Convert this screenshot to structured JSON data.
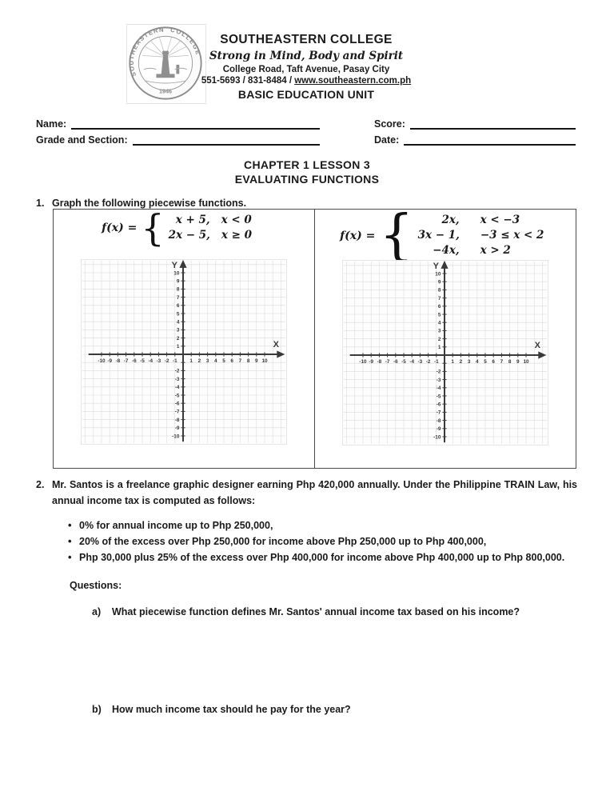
{
  "header": {
    "college_name": "SOUTHEASTERN COLLEGE",
    "motto": "Strong in Mind, Body and Spirit",
    "address": "College Road, Taft Avenue, Pasay City",
    "contact_prefix": "551-5693 / 831-8484 / ",
    "website": "www.southeastern.com.ph",
    "unit_name": "BASIC EDUCATION UNIT",
    "seal": {
      "arc_left": "SOUTHEASTERN",
      "arc_right": "COLLEGE",
      "year": "1946"
    }
  },
  "fields": {
    "name_label": "Name:",
    "score_label": "Score:",
    "grade_section_label": "Grade and Section:",
    "date_label": "Date:"
  },
  "title": {
    "line1": "CHAPTER 1 LESSON 3",
    "line2": "EVALUATING FUNCTIONS"
  },
  "q1": {
    "number": "1.",
    "prompt": "Graph the following piecewise functions.",
    "functions": [
      {
        "lhs": "f(x) =",
        "pieces": [
          {
            "expr": "x + 5,",
            "cond": "x < 0"
          },
          {
            "expr": "2x − 5,",
            "cond": "x ≥ 0"
          }
        ]
      },
      {
        "lhs": "f(x) =",
        "pieces": [
          {
            "expr": "2x,",
            "cond": "x < −3"
          },
          {
            "expr": "3x − 1,",
            "cond": "−3 ≤ x < 2"
          },
          {
            "expr": "−4x,",
            "cond": "x > 2"
          }
        ]
      }
    ]
  },
  "chart_data": [
    {
      "type": "scatter",
      "title": "",
      "xlabel": "X",
      "ylabel": "Y",
      "xlim": [
        -12,
        13
      ],
      "ylim": [
        -11,
        11
      ],
      "grid": true,
      "x_ticks": [
        -10,
        -9,
        -8,
        -7,
        -6,
        -5,
        -4,
        -3,
        -2,
        -1,
        1,
        2,
        3,
        4,
        5,
        6,
        7,
        8,
        9,
        10
      ],
      "y_ticks": [
        10,
        9,
        8,
        7,
        6,
        5,
        4,
        3,
        2,
        1,
        -2,
        -3,
        -4,
        -5,
        -6,
        -7,
        -8,
        -9,
        -10
      ],
      "series": []
    },
    {
      "type": "scatter",
      "title": "",
      "xlabel": "X",
      "ylabel": "Y",
      "xlim": [
        -12,
        13
      ],
      "ylim": [
        -11,
        11
      ],
      "grid": true,
      "x_ticks": [
        -10,
        -9,
        -8,
        -7,
        -6,
        -5,
        -4,
        -3,
        -2,
        -1,
        1,
        2,
        3,
        4,
        5,
        6,
        7,
        8,
        9,
        10
      ],
      "y_ticks": [
        10,
        9,
        8,
        7,
        6,
        5,
        4,
        3,
        2,
        1,
        -2,
        -3,
        -4,
        -5,
        -6,
        -7,
        -8,
        -9,
        -10
      ],
      "series": []
    }
  ],
  "q2": {
    "number": "2.",
    "prompt": "Mr. Santos is a freelance graphic designer earning Php 420,000 annually. Under the Philippine TRAIN Law, his annual income tax is computed as follows:",
    "bullets": [
      "0% for annual income up to Php 250,000,",
      "20% of the excess over Php 250,000 for income above Php 250,000 up to Php 400,000,",
      "Php 30,000 plus 25% of the excess over Php 400,000 for income above Php 400,000 up to Php 800,000."
    ],
    "questions_label": "Questions:",
    "subquestions": [
      {
        "label": "a)",
        "text": "What piecewise function defines Mr. Santos' annual income tax based on his income?"
      },
      {
        "label": "b)",
        "text": "How much income tax should he pay for the year?"
      }
    ]
  },
  "colors": {
    "axis": "#3a3a3a",
    "grid_line": "#dcdcdc",
    "text": "#1a1a1a",
    "table_border": "#4a4a4a"
  }
}
